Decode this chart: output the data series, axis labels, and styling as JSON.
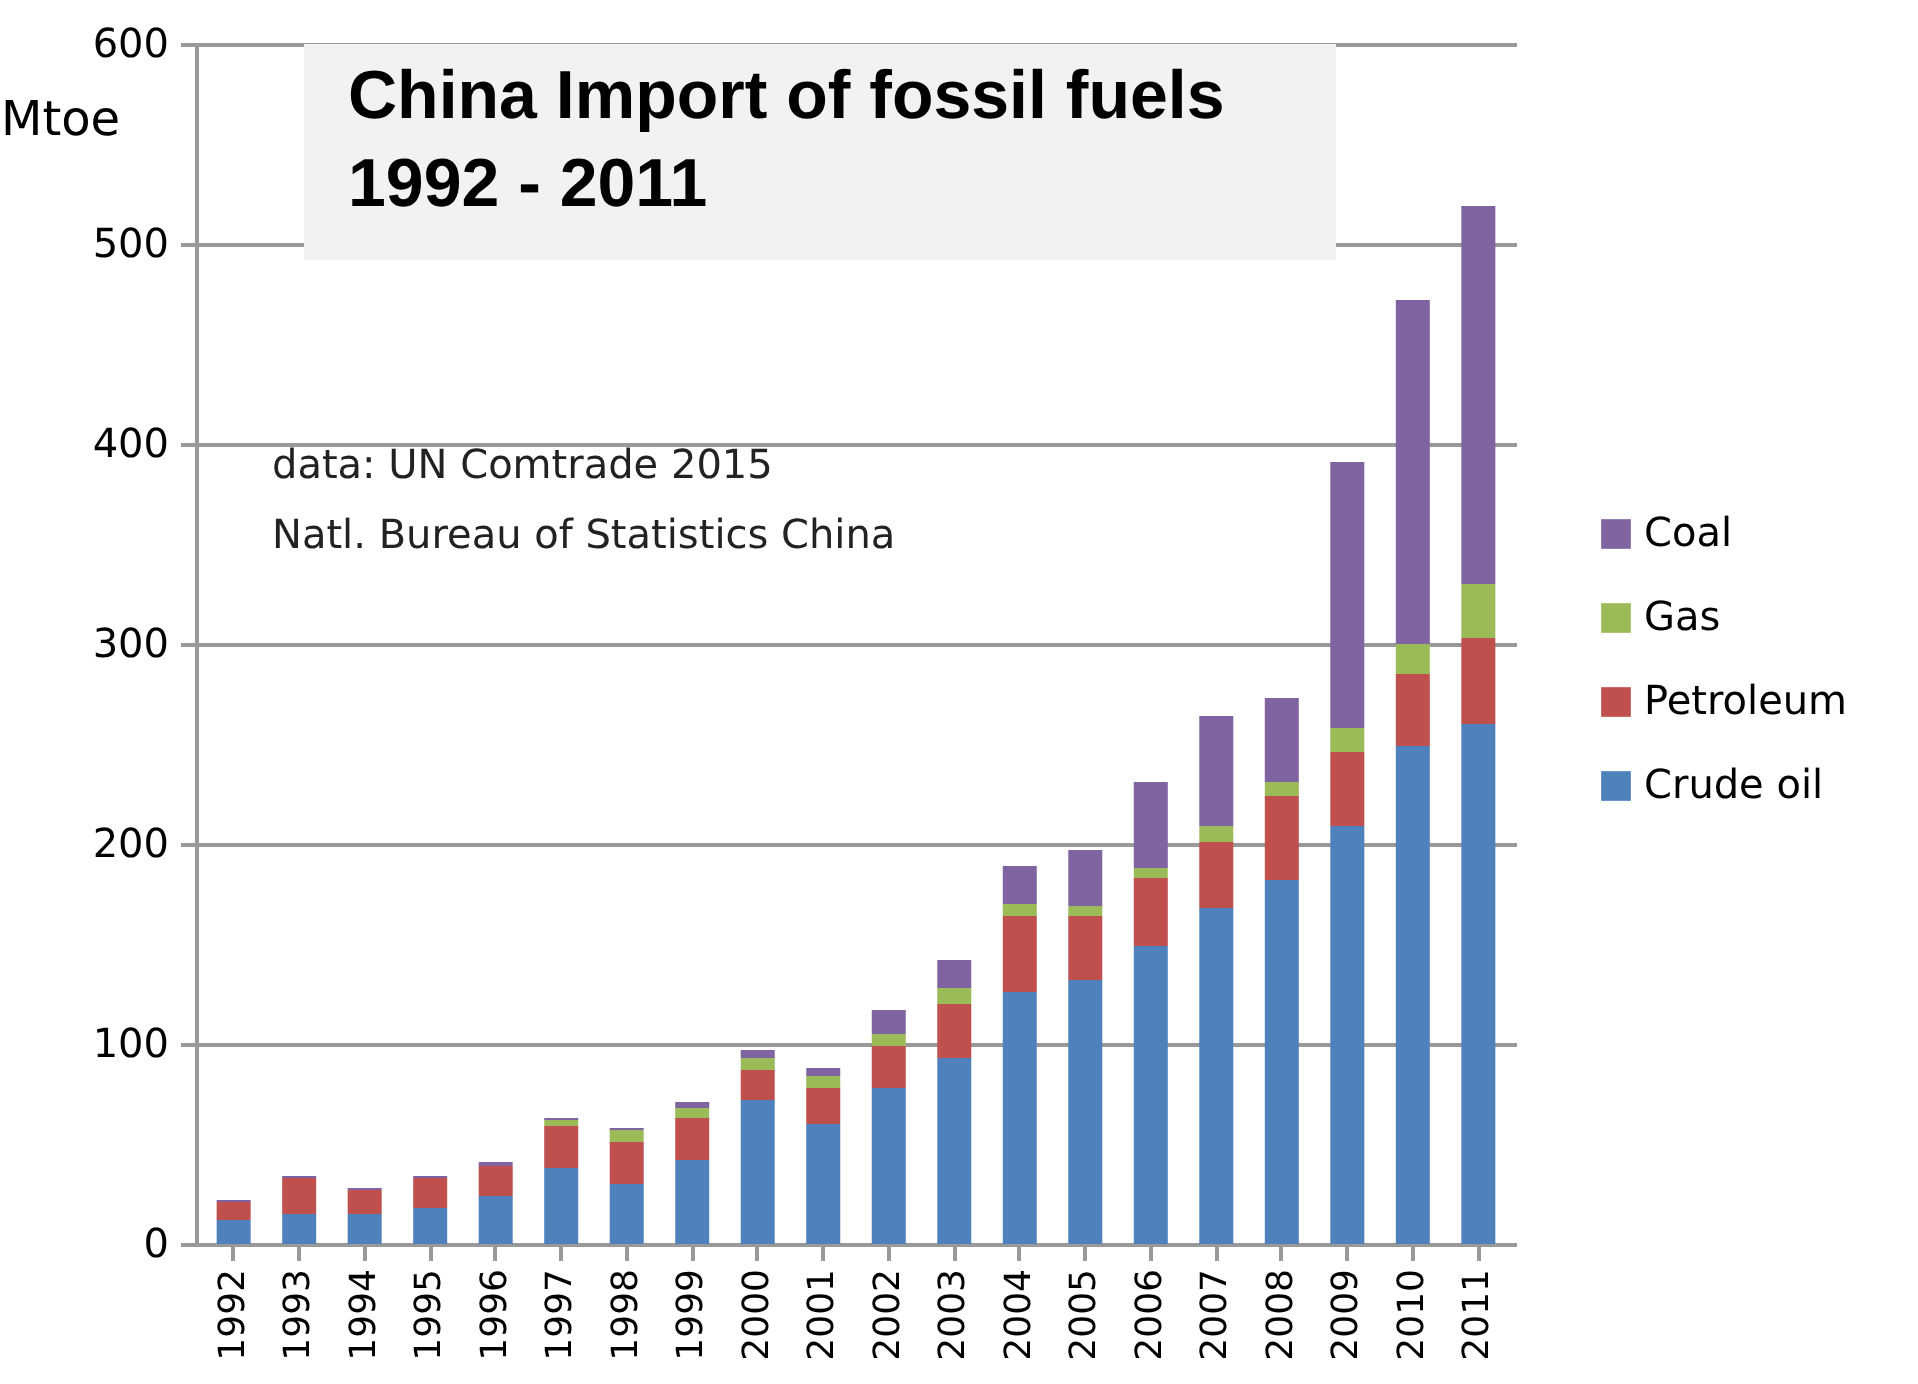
{
  "chart_data": {
    "type": "bar",
    "stacked": true,
    "title": "China Import of fossil fuels\n1992 - 2011",
    "ylabel": "Mtoe",
    "annotations": [
      "data: UN Comtrade 2015",
      "Natl. Bureau of Statistics China"
    ],
    "categories": [
      "1992",
      "1993",
      "1994",
      "1995",
      "1996",
      "1997",
      "1998",
      "1999",
      "2000",
      "2001",
      "2002",
      "2003",
      "2004",
      "2005",
      "2006",
      "2007",
      "2008",
      "2009",
      "2010",
      "2011"
    ],
    "series": [
      {
        "name": "Crude oil",
        "color": "#4f81bd",
        "values": [
          12,
          15,
          15,
          18,
          24,
          38,
          30,
          42,
          72,
          60,
          78,
          93,
          126,
          132,
          149,
          168,
          182,
          209,
          249,
          260
        ]
      },
      {
        "name": "Petroleum",
        "color": "#c0504d",
        "values": [
          9,
          18,
          12,
          15,
          15,
          21,
          21,
          21,
          15,
          18,
          21,
          27,
          38,
          32,
          34,
          33,
          42,
          37,
          36,
          43
        ]
      },
      {
        "name": "Gas",
        "color": "#9bbb59",
        "values": [
          0,
          0,
          0,
          0,
          0,
          3,
          6,
          5,
          6,
          6,
          6,
          8,
          6,
          5,
          5,
          8,
          7,
          12,
          15,
          27
        ]
      },
      {
        "name": "Coal",
        "color": "#8064a2",
        "values": [
          1,
          1,
          1,
          1,
          2,
          1,
          1,
          3,
          4,
          4,
          12,
          14,
          19,
          28,
          43,
          55,
          42,
          133,
          172,
          189
        ]
      }
    ],
    "ylim": [
      0,
      600
    ],
    "yticks": [
      0,
      100,
      200,
      300,
      400,
      500,
      600
    ],
    "grid": "y",
    "legend": "right"
  }
}
